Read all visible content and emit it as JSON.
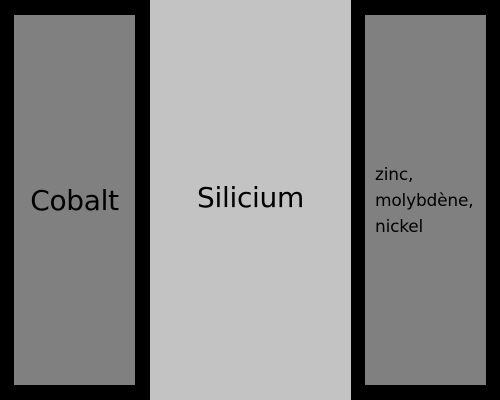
{
  "panels": [
    {
      "label": "Cobalt",
      "color": "#808080"
    },
    {
      "label": "Silicium",
      "color": "#c3c3c3"
    },
    {
      "label": "zinc,\nmolybdène,\nnickel",
      "color": "#808080"
    }
  ],
  "background_color": "#000000"
}
